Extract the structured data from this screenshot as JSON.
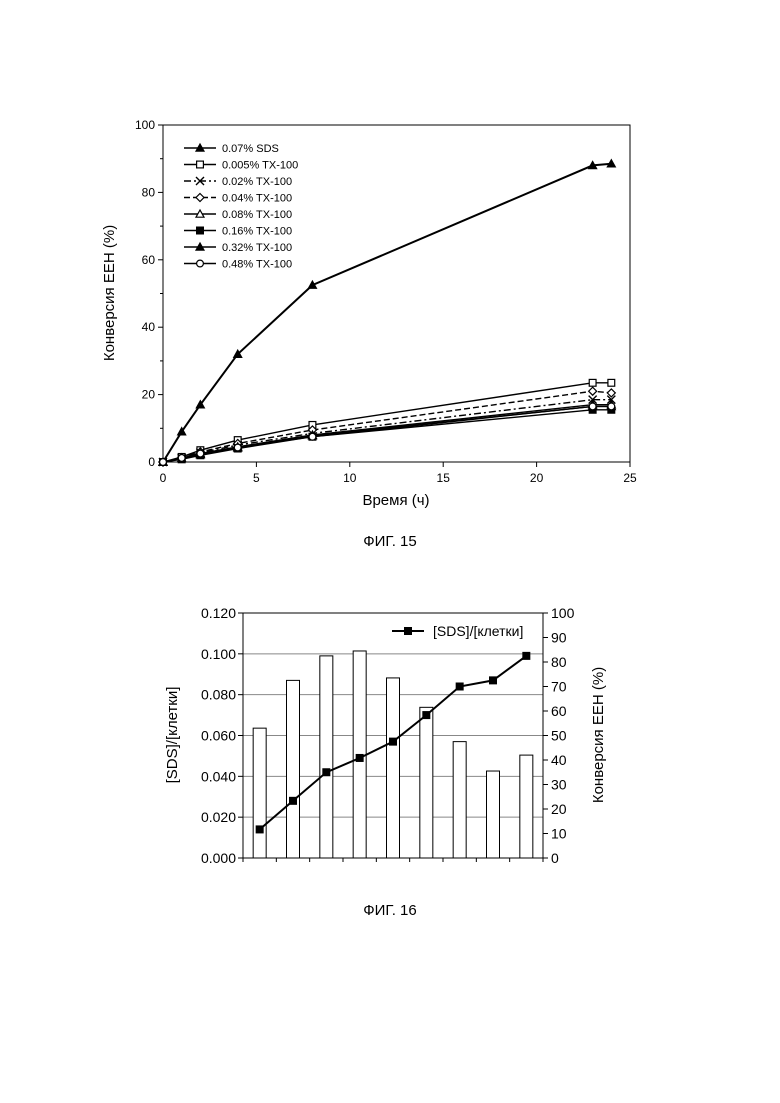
{
  "figures": [
    {
      "caption": "ФИГ. 15",
      "chart_data": {
        "type": "line",
        "xlabel": "Время (ч)",
        "ylabel": "Конверсия ЕЕН (%)",
        "xlim": [
          0,
          25
        ],
        "ylim": [
          0,
          100
        ],
        "xticks": [
          "0",
          "5",
          "10",
          "15",
          "20",
          "25"
        ],
        "yticks": [
          "0",
          "20",
          "40",
          "60",
          "80",
          "100"
        ],
        "grid": false,
        "legend_position": "top-left",
        "series": [
          {
            "name": "0.07% SDS",
            "marker": "triangle-filled",
            "dash": "solid",
            "x": [
              0,
              1,
              2,
              4,
              8,
              23,
              24
            ],
            "y": [
              0,
              9,
              17,
              32,
              52.5,
              88,
              88.5
            ]
          },
          {
            "name": "0.005% TX-100",
            "marker": "square-open",
            "dash": "solid",
            "x": [
              0,
              1,
              2,
              4,
              8,
              23,
              24
            ],
            "y": [
              0,
              1.5,
              3.5,
              6.5,
              11,
              23.5,
              23.5
            ]
          },
          {
            "name": "0.02% TX-100",
            "marker": "x",
            "dash": "dashdot",
            "x": [
              0,
              1,
              2,
              4,
              8,
              23,
              24
            ],
            "y": [
              0,
              1.2,
              2.8,
              5,
              8.5,
              18.5,
              18.5
            ]
          },
          {
            "name": "0.04% TX-100",
            "marker": "diamond-open",
            "dash": "dashed",
            "x": [
              0,
              1,
              2,
              4,
              8,
              23,
              24
            ],
            "y": [
              0,
              1.3,
              3,
              5.5,
              9.5,
              21,
              20.5
            ]
          },
          {
            "name": "0.08% TX-100",
            "marker": "triangle-open",
            "dash": "solid",
            "x": [
              0,
              1,
              2,
              4,
              8,
              23,
              24
            ],
            "y": [
              0,
              1,
              2.5,
              4.5,
              8,
              17,
              17
            ]
          },
          {
            "name": "0.16% TX-100",
            "marker": "square-filled",
            "dash": "solid",
            "x": [
              0,
              1,
              2,
              4,
              8,
              23,
              24
            ],
            "y": [
              0,
              0.8,
              2,
              4,
              7.5,
              15.5,
              15.5
            ]
          },
          {
            "name": "0.32% TX-100",
            "marker": "triangle-filled",
            "dash": "solid",
            "x": [
              0,
              1,
              2,
              4,
              8,
              23,
              24
            ],
            "y": [
              0,
              1,
              2.2,
              4.2,
              7.8,
              16.5,
              16.5
            ]
          },
          {
            "name": "0.48% TX-100",
            "marker": "circle-open",
            "dash": "solid",
            "x": [
              0,
              1,
              2,
              4,
              8,
              23,
              24
            ],
            "y": [
              0,
              1.2,
              2.5,
              4.3,
              7.5,
              16.5,
              16.5
            ]
          }
        ]
      }
    },
    {
      "caption": "ФИГ. 16",
      "chart_data": {
        "type": "bar",
        "y1label": "[SDS]/[клетки]",
        "y2label": "Конверсия ЕЕН (%)",
        "y1lim": [
          0,
          0.12
        ],
        "y2lim": [
          0,
          100
        ],
        "y1ticks": [
          "0.000",
          "0.020",
          "0.040",
          "0.060",
          "0.080",
          "0.100",
          "0.120"
        ],
        "y2ticks": [
          "0",
          "10",
          "20",
          "30",
          "40",
          "50",
          "60",
          "70",
          "80",
          "90",
          "100"
        ],
        "grid": true,
        "legend_position": "top-right",
        "bars_secondary_axis": [
          53,
          72.5,
          82.5,
          84.5,
          73.5,
          61.5,
          47.5,
          35.5,
          42
        ],
        "series": [
          {
            "name": "[SDS]/[клетки]",
            "marker": "square-filled",
            "axis": "primary",
            "values": [
              0.014,
              0.028,
              0.042,
              0.049,
              0.057,
              0.07,
              0.084,
              0.087,
              0.099
            ]
          }
        ]
      }
    }
  ]
}
